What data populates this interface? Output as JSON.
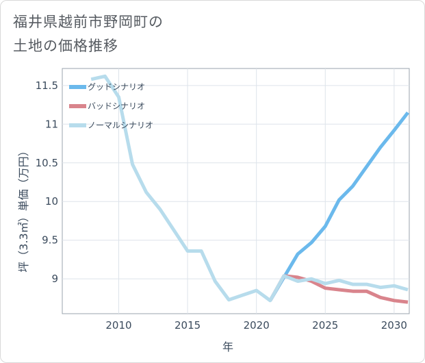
{
  "title_lines": [
    "福井県越前市野岡町の",
    "土地の価格推移"
  ],
  "chart_data": {
    "type": "line",
    "xlabel": "年",
    "ylabel": "坪（3.3㎡）単価（万円）",
    "xlim": [
      2005.9,
      2031.1
    ],
    "ylim": [
      8.55,
      11.72
    ],
    "x_ticks": [
      2010,
      2015,
      2020,
      2025,
      2030
    ],
    "y_ticks": [
      9,
      9.5,
      10,
      10.5,
      11,
      11.5
    ],
    "x_tick_labels": [
      "2010",
      "2015",
      "2020",
      "2025",
      "2030"
    ],
    "y_tick_labels": [
      "9",
      "9.5",
      "10",
      "10.5",
      "11",
      "11.5"
    ],
    "grid": true,
    "legend_position": "top-left",
    "series": [
      {
        "name": "グッドシナリオ",
        "color": "#6bb9ec",
        "x": [
          2021,
          2022,
          2023,
          2024,
          2025,
          2026,
          2027,
          2028,
          2029,
          2030,
          2031
        ],
        "values": [
          8.72,
          9.02,
          9.32,
          9.47,
          9.68,
          10.02,
          10.2,
          10.45,
          10.7,
          10.92,
          11.15
        ]
      },
      {
        "name": "バッドシナリオ",
        "color": "#d9848c",
        "x": [
          2021,
          2022,
          2023,
          2024,
          2025,
          2026,
          2027,
          2028,
          2029,
          2030,
          2031
        ],
        "values": [
          8.72,
          9.04,
          9.02,
          8.97,
          8.88,
          8.86,
          8.84,
          8.84,
          8.76,
          8.72,
          8.7
        ]
      },
      {
        "name": "ノーマルシナリオ",
        "color": "#b7dcec",
        "x": [
          2008,
          2009,
          2010,
          2011,
          2012,
          2013,
          2014,
          2015,
          2016,
          2017,
          2018,
          2019,
          2020,
          2021,
          2022,
          2023,
          2024,
          2025,
          2026,
          2027,
          2028,
          2029,
          2030,
          2031
        ],
        "values": [
          11.58,
          11.62,
          11.35,
          10.48,
          10.12,
          9.9,
          9.63,
          9.36,
          9.36,
          8.97,
          8.73,
          8.79,
          8.85,
          8.72,
          9.04,
          8.97,
          9.0,
          8.94,
          8.98,
          8.93,
          8.93,
          8.89,
          8.91,
          8.86
        ]
      }
    ]
  }
}
